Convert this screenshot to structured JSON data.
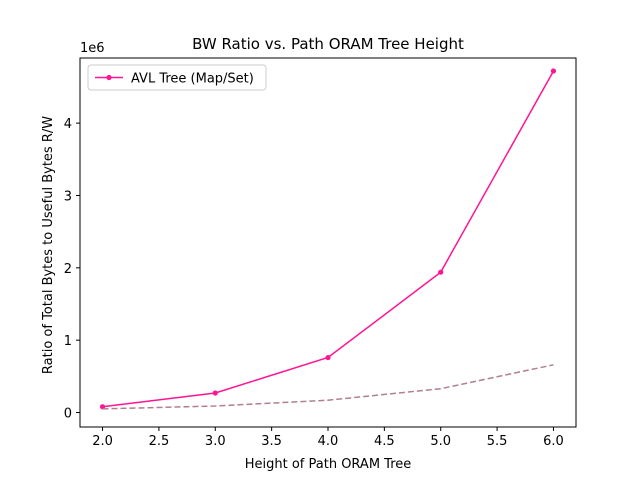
{
  "chart_data": {
    "type": "line",
    "title": "BW Ratio vs. Path ORAM Tree Height",
    "xlabel": "Height of Path ORAM Tree",
    "ylabel": "Ratio of Total Bytes to Useful Bytes R/W",
    "y_offset_label": "1e6",
    "xlim": [
      1.8,
      6.2
    ],
    "ylim": [
      -0.2,
      4.9
    ],
    "x_ticks": [
      2.0,
      2.5,
      3.0,
      3.5,
      4.0,
      4.5,
      5.0,
      5.5,
      6.0
    ],
    "x_tick_labels": [
      "2.0",
      "2.5",
      "3.0",
      "3.5",
      "4.0",
      "4.5",
      "5.0",
      "5.5",
      "6.0"
    ],
    "y_ticks": [
      0,
      1,
      2,
      3,
      4
    ],
    "y_tick_labels": [
      "0",
      "1",
      "2",
      "3",
      "4"
    ],
    "grid": false,
    "legend_position": "upper-left",
    "series": [
      {
        "name": "AVL Tree (Map/Set)",
        "x": [
          2,
          3,
          4,
          5,
          6
        ],
        "y": [
          0.08,
          0.27,
          0.76,
          1.94,
          4.72
        ],
        "color": "#ff1493",
        "style": "solid",
        "marker": "circle",
        "in_legend": true
      },
      {
        "x": [
          2,
          3,
          4,
          5,
          6
        ],
        "y": [
          0.05,
          0.09,
          0.17,
          0.33,
          0.66
        ],
        "color": "#b08090",
        "style": "dashed",
        "marker": "none",
        "in_legend": false
      }
    ]
  }
}
